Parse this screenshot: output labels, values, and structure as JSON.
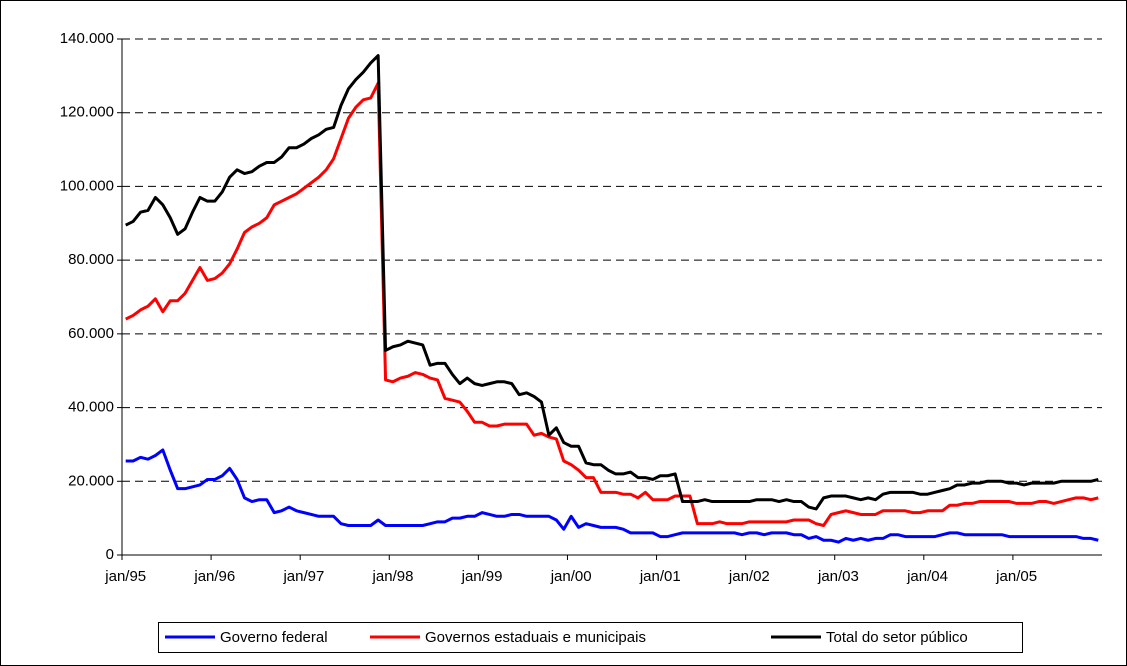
{
  "chart_data": {
    "type": "line",
    "categories": [
      "jan/95",
      null,
      null,
      null,
      null,
      null,
      null,
      null,
      null,
      null,
      null,
      null,
      "jan/96",
      null,
      null,
      null,
      null,
      null,
      null,
      null,
      null,
      null,
      null,
      null,
      "jan/97",
      null,
      null,
      null,
      null,
      null,
      null,
      null,
      null,
      null,
      null,
      null,
      "jan/98",
      null,
      null,
      null,
      null,
      null,
      null,
      null,
      null,
      null,
      null,
      null,
      "jan/99",
      null,
      null,
      null,
      null,
      null,
      null,
      null,
      null,
      null,
      null,
      null,
      "jan/00",
      null,
      null,
      null,
      null,
      null,
      null,
      null,
      null,
      null,
      null,
      null,
      "jan/01",
      null,
      null,
      null,
      null,
      null,
      null,
      null,
      null,
      null,
      null,
      null,
      "jan/02",
      null,
      null,
      null,
      null,
      null,
      null,
      null,
      null,
      null,
      null,
      null,
      "jan/03",
      null,
      null,
      null,
      null,
      null,
      null,
      null,
      null,
      null,
      null,
      null,
      "jan/04",
      null,
      null,
      null,
      null,
      null,
      null,
      null,
      null,
      null,
      null,
      null,
      "jan/05",
      null,
      null,
      null,
      null,
      null,
      null,
      null,
      null,
      null,
      null,
      null
    ],
    "series": [
      {
        "name": "Governo federal",
        "color": "#0000ff",
        "values": [
          25500,
          25500,
          26500,
          26000,
          27000,
          28500,
          23000,
          18000,
          18000,
          18500,
          19000,
          20500,
          20500,
          21500,
          23500,
          20500,
          15500,
          14500,
          15000,
          15000,
          11500,
          12000,
          13000,
          12000,
          11500,
          11000,
          10500,
          10500,
          10500,
          8500,
          8000,
          8000,
          8000,
          8000,
          9500,
          8000,
          8000,
          8000,
          8000,
          8000,
          8000,
          8500,
          9000,
          9000,
          10000,
          10000,
          10500,
          10500,
          11500,
          11000,
          10500,
          10500,
          11000,
          11000,
          10500,
          10500,
          10500,
          10500,
          9500,
          7000,
          10500,
          7500,
          8500,
          8000,
          7500,
          7500,
          7500,
          7000,
          6000,
          6000,
          6000,
          6000,
          5000,
          5000,
          5500,
          6000,
          6000,
          6000,
          6000,
          6000,
          6000,
          6000,
          6000,
          5500,
          6000,
          6000,
          5500,
          6000,
          6000,
          6000,
          5500,
          5500,
          4500,
          5000,
          4000,
          4000,
          3500,
          4500,
          4000,
          4500,
          4000,
          4500,
          4500,
          5500,
          5500,
          5000,
          5000,
          5000,
          5000,
          5000,
          5500,
          6000,
          6000,
          5500,
          5500,
          5500,
          5500,
          5500,
          5500,
          5000,
          5000,
          5000,
          5000,
          5000,
          5000,
          5000,
          5000,
          5000,
          5000,
          4500,
          4500,
          4000
        ]
      },
      {
        "name": "Governos estaduais e municipais",
        "color": "#ff0000",
        "values": [
          64000,
          65000,
          66500,
          67500,
          69500,
          66000,
          69000,
          69000,
          71000,
          74500,
          78000,
          74500,
          75000,
          76500,
          79000,
          83000,
          87500,
          89000,
          90000,
          91500,
          95000,
          96000,
          97000,
          98000,
          99500,
          101000,
          102500,
          104500,
          107500,
          113000,
          118500,
          121500,
          123500,
          124000,
          128000,
          47500,
          47000,
          48000,
          48500,
          49500,
          49000,
          48000,
          47500,
          42500,
          42000,
          41500,
          39000,
          36000,
          36000,
          35000,
          35000,
          35500,
          35500,
          35500,
          35500,
          32500,
          33000,
          32000,
          31500,
          25500,
          24500,
          23000,
          21000,
          21000,
          17000,
          17000,
          17000,
          16500,
          16500,
          15500,
          17000,
          15000,
          15000,
          15000,
          16000,
          16000,
          16000,
          8500,
          8500,
          8500,
          9000,
          8500,
          8500,
          8500,
          9000,
          9000,
          9000,
          9000,
          9000,
          9000,
          9500,
          9500,
          9500,
          8500,
          8000,
          11000,
          11500,
          12000,
          11500,
          11000,
          11000,
          11000,
          12000,
          12000,
          12000,
          12000,
          11500,
          11500,
          12000,
          12000,
          12000,
          13500,
          13500,
          14000,
          14000,
          14500,
          14500,
          14500,
          14500,
          14500,
          14000,
          14000,
          14000,
          14500,
          14500,
          14000,
          14500,
          15000,
          15500,
          15500,
          15000,
          15500
        ]
      },
      {
        "name": "Total do setor público",
        "color": "#000000",
        "values": [
          89500,
          90500,
          93000,
          93500,
          97000,
          95000,
          91500,
          87000,
          88500,
          93000,
          97000,
          96000,
          96000,
          98500,
          102500,
          104500,
          103500,
          104000,
          105500,
          106500,
          106500,
          108000,
          110500,
          110500,
          111500,
          113000,
          114000,
          115500,
          116000,
          122000,
          126500,
          129000,
          131000,
          133500,
          135500,
          55500,
          56500,
          57000,
          58000,
          57500,
          57000,
          51500,
          52000,
          52000,
          49000,
          46500,
          48000,
          46500,
          46000,
          46500,
          47000,
          47000,
          46500,
          43500,
          44000,
          43000,
          41500,
          32500,
          34500,
          30500,
          29500,
          29500,
          25000,
          24500,
          24500,
          23000,
          22000,
          22000,
          22500,
          21000,
          21000,
          20500,
          21500,
          21500,
          22000,
          14500,
          14500,
          14500,
          15000,
          14500,
          14500,
          14500,
          14500,
          14500,
          14500,
          15000,
          15000,
          15000,
          14500,
          15000,
          14500,
          14500,
          13000,
          12500,
          15500,
          16000,
          16000,
          16000,
          15500,
          15000,
          15500,
          15000,
          16500,
          17000,
          17000,
          17000,
          17000,
          16500,
          16500,
          17000,
          17500,
          18000,
          19000,
          19000,
          19500,
          19500,
          20000,
          20000,
          20000,
          19500,
          19500,
          19000,
          19500,
          19500,
          19500,
          19500,
          20000,
          20000,
          20000,
          20000,
          20000,
          20500
        ]
      }
    ],
    "ylim": [
      0,
      140000
    ],
    "yticks": [
      {
        "value": 0,
        "label": "0"
      },
      {
        "value": 20000,
        "label": "20.000"
      },
      {
        "value": 40000,
        "label": "40.000"
      },
      {
        "value": 60000,
        "label": "60.000"
      },
      {
        "value": 80000,
        "label": "80.000"
      },
      {
        "value": 100000,
        "label": "100.000"
      },
      {
        "value": 120000,
        "label": "120.000"
      },
      {
        "value": 140000,
        "label": "140.000"
      }
    ],
    "grid": true,
    "legend": "bottom"
  }
}
